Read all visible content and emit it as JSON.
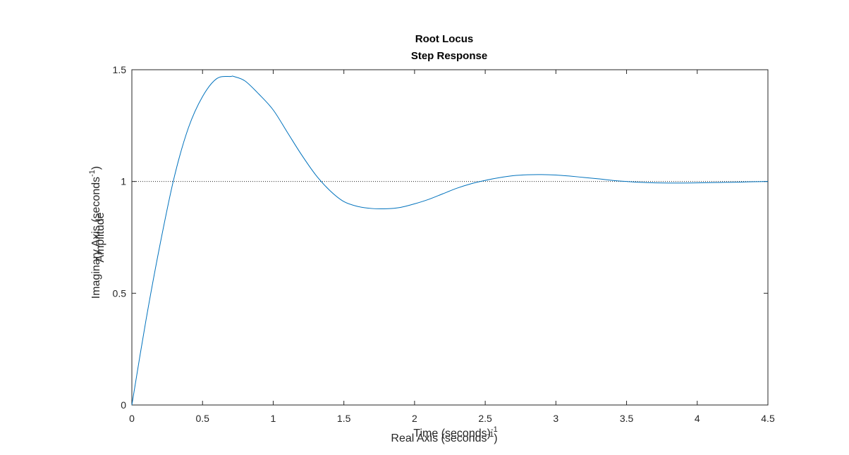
{
  "chart_data": {
    "type": "line",
    "title": "Root Locus",
    "subtitle": "Step Response",
    "xlabel_time": "Time (seconds)",
    "xlabel_real": "Real Axis (seconds",
    "xlabel_real_exp": "-1",
    "ylabel_amplitude": "Amplitude",
    "ylabel_imag": "Imaginary Axis (seconds",
    "ylabel_imag_exp": "-1",
    "xlim": [
      0,
      4.5
    ],
    "ylim": [
      0,
      1.5
    ],
    "xticks": [
      "0",
      "0.5",
      "1",
      "1.5",
      "2",
      "2.5",
      "3",
      "3.5",
      "4",
      "4.5"
    ],
    "yticks": [
      "0",
      "0.5",
      "1",
      "1.5"
    ],
    "grid": false,
    "reference_line": {
      "y": 1,
      "style": "dotted"
    },
    "series": [
      {
        "color": "#0072BD",
        "x": [
          0,
          0.1,
          0.2,
          0.3,
          0.4,
          0.5,
          0.6,
          0.7,
          0.72,
          0.8,
          0.9,
          1.0,
          1.1,
          1.2,
          1.3,
          1.4,
          1.5,
          1.6,
          1.7,
          1.8,
          1.9,
          2.0,
          2.1,
          2.2,
          2.3,
          2.4,
          2.5,
          2.6,
          2.7,
          2.8,
          2.9,
          3.0,
          3.1,
          3.2,
          3.3,
          3.4,
          3.5,
          3.6,
          3.7,
          3.8,
          3.9,
          4.0,
          4.1,
          4.2,
          4.3,
          4.4,
          4.5
        ],
        "y": [
          0,
          0.38,
          0.72,
          1.02,
          1.24,
          1.38,
          1.46,
          1.47,
          1.47,
          1.45,
          1.39,
          1.32,
          1.22,
          1.12,
          1.03,
          0.96,
          0.91,
          0.888,
          0.879,
          0.878,
          0.884,
          0.9,
          0.92,
          0.945,
          0.97,
          0.99,
          1.005,
          1.017,
          1.026,
          1.03,
          1.031,
          1.029,
          1.024,
          1.018,
          1.012,
          1.005,
          1.0,
          0.996,
          0.994,
          0.993,
          0.993,
          0.994,
          0.995,
          0.996,
          0.997,
          0.999,
          1.0
        ]
      }
    ],
    "colors": {
      "axes": "#262626",
      "line": "#0072BD",
      "reference": "#262626"
    }
  }
}
